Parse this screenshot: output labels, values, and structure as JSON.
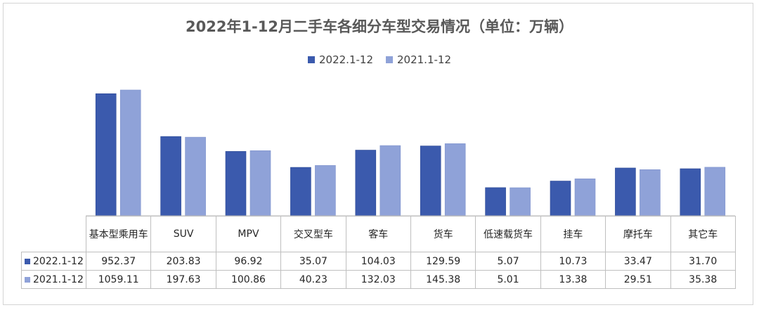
{
  "chart_data": {
    "type": "bar",
    "title": "2022年1-12月二手车各细分车型交易情况（单位：万辆）",
    "categories": [
      "基本型乘用车",
      "SUV",
      "MPV",
      "交叉型车",
      "客车",
      "货车",
      "低速载货车",
      "挂车",
      "摩托车",
      "其它车"
    ],
    "series": [
      {
        "name": "2022.1-12",
        "values": [
          952.37,
          203.83,
          96.92,
          35.07,
          104.03,
          129.59,
          5.07,
          10.73,
          33.47,
          31.7
        ],
        "labels": [
          "952.37",
          "203.83",
          "96.92",
          "35.07",
          "104.03",
          "129.59",
          "5.07",
          "10.73",
          "33.47",
          "31.70"
        ],
        "color": "#3b5aad"
      },
      {
        "name": "2021.1-12",
        "values": [
          1059.11,
          197.63,
          100.86,
          40.23,
          132.03,
          145.38,
          5.01,
          13.38,
          29.51,
          35.38
        ],
        "labels": [
          "1059.11",
          "197.63",
          "100.86",
          "40.23",
          "132.03",
          "145.38",
          "5.01",
          "13.38",
          "29.51",
          "35.38"
        ],
        "color": "#8fa2d8"
      }
    ],
    "legend_position": "top-center",
    "grid": false,
    "data_table": true
  }
}
